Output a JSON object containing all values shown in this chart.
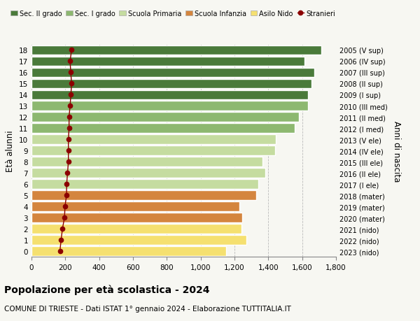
{
  "ages": [
    0,
    1,
    2,
    3,
    4,
    5,
    6,
    7,
    8,
    9,
    10,
    11,
    12,
    13,
    14,
    15,
    16,
    17,
    18
  ],
  "right_labels": [
    "2023 (nido)",
    "2022 (nido)",
    "2021 (nido)",
    "2020 (mater)",
    "2019 (mater)",
    "2018 (mater)",
    "2017 (I ele)",
    "2016 (II ele)",
    "2015 (III ele)",
    "2014 (IV ele)",
    "2013 (V ele)",
    "2012 (I med)",
    "2011 (II med)",
    "2010 (III med)",
    "2009 (I sup)",
    "2008 (II sup)",
    "2007 (III sup)",
    "2006 (IV sup)",
    "2005 (V sup)"
  ],
  "bar_values": [
    1150,
    1270,
    1240,
    1245,
    1230,
    1330,
    1340,
    1380,
    1365,
    1440,
    1445,
    1555,
    1580,
    1635,
    1635,
    1655,
    1670,
    1615,
    1715
  ],
  "stranieri_values": [
    168,
    175,
    183,
    195,
    198,
    207,
    208,
    213,
    218,
    218,
    218,
    222,
    222,
    228,
    233,
    237,
    232,
    228,
    237
  ],
  "bar_colors": [
    "#f5e070",
    "#f5e070",
    "#f5e070",
    "#d4853e",
    "#d4853e",
    "#d4853e",
    "#c5dca0",
    "#c5dca0",
    "#c5dca0",
    "#c5dca0",
    "#c5dca0",
    "#8db870",
    "#8db870",
    "#8db870",
    "#4a7a3a",
    "#4a7a3a",
    "#4a7a3a",
    "#4a7a3a",
    "#4a7a3a"
  ],
  "legend_labels": [
    "Sec. II grado",
    "Sec. I grado",
    "Scuola Primaria",
    "Scuola Infanzia",
    "Asilo Nido",
    "Stranieri"
  ],
  "legend_colors": [
    "#4a7a3a",
    "#8db870",
    "#c5dca0",
    "#d4853e",
    "#f5e070",
    "#8b0000"
  ],
  "stranieri_color": "#8b0000",
  "title": "Popolazione per età scolastica - 2024",
  "subtitle": "COMUNE DI TRIESTE - Dati ISTAT 1° gennaio 2024 - Elaborazione TUTTITALIA.IT",
  "ylabel_left": "Età alunni",
  "ylabel_right": "Anni di nascita",
  "xlim": [
    0,
    1800
  ],
  "xticks": [
    0,
    200,
    400,
    600,
    800,
    1000,
    1200,
    1400,
    1600,
    1800
  ],
  "background_color": "#f7f7f2",
  "bar_height": 0.85,
  "grid_color": "#bbbbbb"
}
